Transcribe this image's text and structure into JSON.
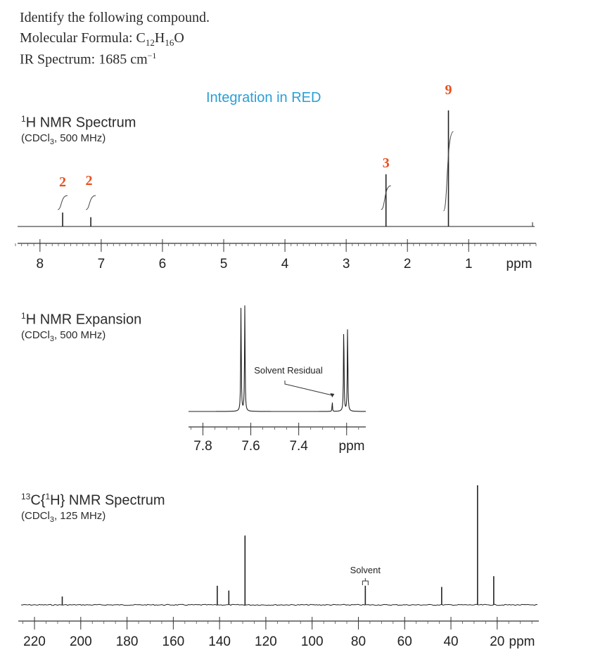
{
  "question": {
    "prompt": "Identify the following compound.",
    "formula_label": "Molecular Formula: ",
    "formula_parts": [
      [
        "C",
        ""
      ],
      [
        "12",
        "sub"
      ],
      [
        "H",
        ""
      ],
      [
        "16",
        "sub"
      ],
      [
        "O",
        ""
      ]
    ],
    "ir_label": "IR Spectrum: 1685 cm",
    "ir_exp": "−1"
  },
  "integration_heading": "Integration in RED",
  "chart_data": [
    {
      "id": "h1",
      "type": "nmr-spectrum",
      "title_sup": "1",
      "title": "H NMR Spectrum",
      "subtitle": "(CDCl3, 500 MHz)",
      "xlim": [
        8.4,
        -0.1
      ],
      "xticks": [
        8,
        7,
        6,
        5,
        4,
        3,
        2,
        1
      ],
      "unit_label": "ppm",
      "peaks": [
        {
          "ppm": 7.63,
          "height": 0.12
        },
        {
          "ppm": 7.17,
          "height": 0.08
        },
        {
          "ppm": 2.35,
          "height": 0.45
        },
        {
          "ppm": 1.33,
          "height": 1.0
        }
      ],
      "integrations": [
        {
          "ppm": 7.63,
          "value": "2"
        },
        {
          "ppm": 7.2,
          "value": "2"
        },
        {
          "ppm": 2.35,
          "value": "3"
        },
        {
          "ppm": 1.33,
          "value": "9"
        }
      ]
    },
    {
      "id": "h1exp",
      "type": "nmr-expansion",
      "title_sup": "1",
      "title": "H NMR Expansion",
      "subtitle": "(CDCl3, 500 MHz)",
      "xlim": [
        7.86,
        7.12
      ],
      "xticks": [
        7.8,
        7.6,
        7.4
      ],
      "extra_ticks": [
        7.2
      ],
      "unit_label": "ppm",
      "doublets": [
        {
          "ppm": [
            7.641,
            7.625
          ],
          "height": 1.0
        },
        {
          "ppm": [
            7.212,
            7.196
          ],
          "height": 0.82
        }
      ],
      "solvent_peak": {
        "ppm": 7.26,
        "height": 0.11,
        "label": "Solvent Residual"
      }
    },
    {
      "id": "c13",
      "type": "nmr-spectrum",
      "title_sup": "13",
      "title": "C{",
      "title_sup2": "1",
      "title_end": "H} NMR Spectrum",
      "subtitle": "(CDCl3, 125 MHz)",
      "xlim": [
        227,
        2
      ],
      "xticks": [
        220,
        200,
        180,
        160,
        140,
        120,
        100,
        80,
        60,
        40,
        20
      ],
      "unit_label": "ppm",
      "peaks": [
        {
          "ppm": 208.0,
          "height": 0.07
        },
        {
          "ppm": 141.0,
          "height": 0.16
        },
        {
          "ppm": 136.0,
          "height": 0.12
        },
        {
          "ppm": 129.0,
          "height": 0.58
        },
        {
          "ppm": 77.0,
          "height": 0.16
        },
        {
          "ppm": 44.0,
          "height": 0.15
        },
        {
          "ppm": 28.5,
          "height": 1.0
        },
        {
          "ppm": 21.5,
          "height": 0.24
        }
      ],
      "solvent_peak": {
        "ppm": 77.0,
        "label": "Solvent"
      }
    }
  ]
}
